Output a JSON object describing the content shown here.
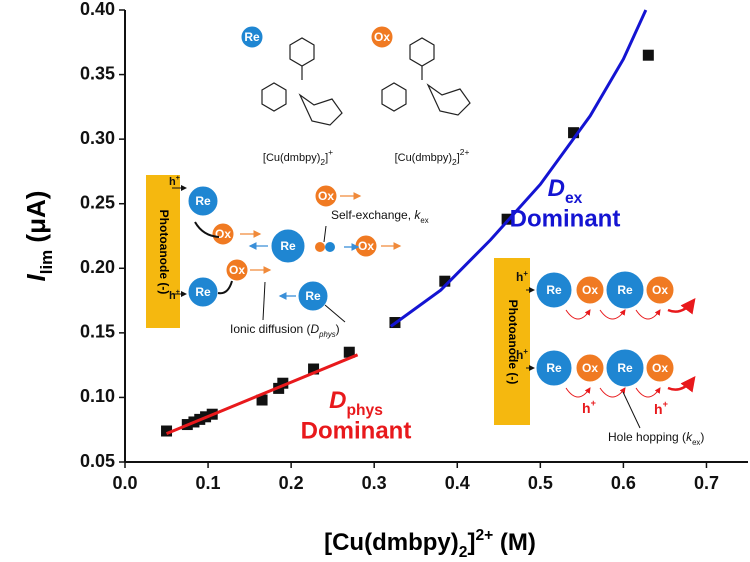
{
  "chart_data": {
    "type": "scatter",
    "ylabel": {
      "main": "I",
      "sub": "lim",
      "rest": " (μA)"
    },
    "xlabel": [
      "[Cu(dmbpy)",
      "2",
      "]",
      "2+",
      " (M)"
    ],
    "xlim": [
      0,
      0.75
    ],
    "ylim": [
      0.05,
      0.4
    ],
    "xticks": [
      {
        "value": 0,
        "label": "0.0"
      },
      0.1,
      0.2,
      0.3,
      0.4,
      0.5,
      0.6,
      0.7
    ],
    "yticks": [
      0.05,
      {
        "value": 0.1,
        "label": "0.10"
      },
      0.15,
      {
        "value": 0.2,
        "label": "0.20"
      },
      0.25,
      {
        "value": 0.3,
        "label": "0.30"
      },
      0.35,
      {
        "value": 0.4,
        "label": "0.40"
      }
    ],
    "series": [
      {
        "color": "#111111",
        "marker": "square",
        "x": [
          0.05,
          0.075,
          0.083,
          0.09,
          0.097,
          0.105,
          0.165,
          0.185,
          0.19,
          0.227,
          0.27
        ],
        "values": [
          0.074,
          0.079,
          0.081,
          0.083,
          0.085,
          0.087,
          0.098,
          0.107,
          0.111,
          0.122,
          0.135
        ]
      },
      {
        "color": "#111111",
        "marker": "square",
        "x": [
          0.325,
          0.385,
          0.46,
          0.54,
          0.63
        ],
        "values": [
          0.158,
          0.19,
          0.238,
          0.305,
          0.365
        ]
      },
      {
        "color": "#e8191c",
        "marker": "line",
        "x": [
          0.05,
          0.28
        ],
        "values": [
          0.072,
          0.133
        ]
      },
      {
        "color": "#1414d2",
        "marker": "line",
        "x": [
          0.32,
          0.38,
          0.44,
          0.5,
          0.56,
          0.6,
          0.627
        ],
        "values": [
          0.155,
          0.183,
          0.222,
          0.265,
          0.318,
          0.362,
          0.4
        ]
      }
    ],
    "annotations": [
      {
        "main": "D",
        "sub": "ex",
        "line2": "Dominant",
        "color": "#1414d2"
      },
      {
        "main": "D",
        "sub": "phys",
        "line2": "Dominant",
        "color": "#e8191c"
      }
    ],
    "insets": {
      "re": "Re",
      "ox": "Ox",
      "complex_1": [
        "[Cu(dmbpy)",
        "2",
        "]",
        "+"
      ],
      "complex_2": [
        "[Cu(dmbpy)",
        "2",
        "]",
        "2+"
      ],
      "photoanode": "Photoanode (-)",
      "hole": [
        "h",
        "+"
      ],
      "self_exchange": [
        "Self-exchange, ",
        "k",
        "ex"
      ],
      "ionic_diffusion": [
        "Ionic diffusion (",
        "D",
        "phys",
        ")"
      ],
      "hole_hopping": [
        "Hole hopping (",
        "k",
        "ex",
        ")"
      ]
    }
  }
}
